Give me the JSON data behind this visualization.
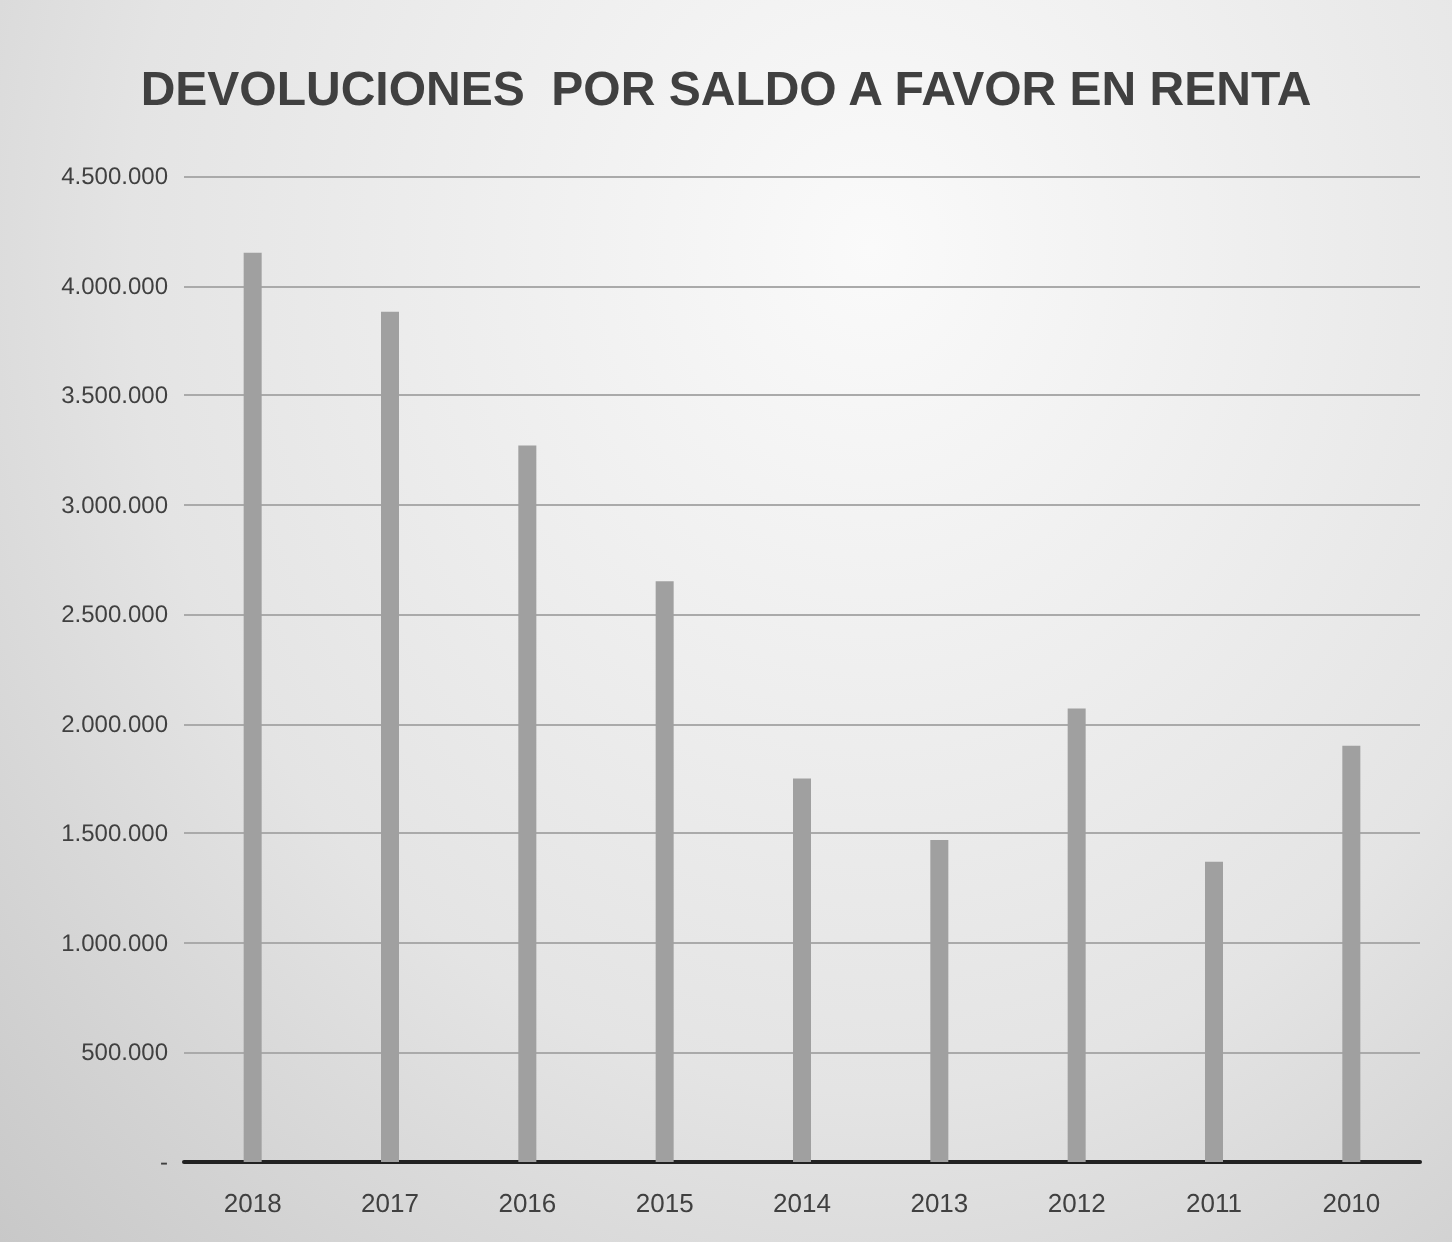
{
  "chart_data": {
    "type": "bar",
    "title": "DEVOLUCIONES  POR SALDO A FAVOR EN RENTA",
    "categories": [
      "2018",
      "2017",
      "2016",
      "2015",
      "2014",
      "2013",
      "2012",
      "2011",
      "2010"
    ],
    "values": [
      4150000,
      3880000,
      3270000,
      2650000,
      1750000,
      1470000,
      2070000,
      1370000,
      1900000
    ],
    "color": "#a0a0a0",
    "ylim": [
      0,
      4500000
    ],
    "yticks": [
      {
        "value": 0,
        "label": "-"
      },
      {
        "value": 500000,
        "label": "500.000"
      },
      {
        "value": 1000000,
        "label": "1.000.000"
      },
      {
        "value": 1500000,
        "label": "1.500.000"
      },
      {
        "value": 2000000,
        "label": "2.000.000"
      },
      {
        "value": 2500000,
        "label": "2.500.000"
      },
      {
        "value": 3000000,
        "label": "3.000.000"
      },
      {
        "value": 3500000,
        "label": "3.500.000"
      },
      {
        "value": 4000000,
        "label": "4.000.000"
      },
      {
        "value": 4500000,
        "label": "4.500.000"
      }
    ],
    "grid": "y"
  }
}
